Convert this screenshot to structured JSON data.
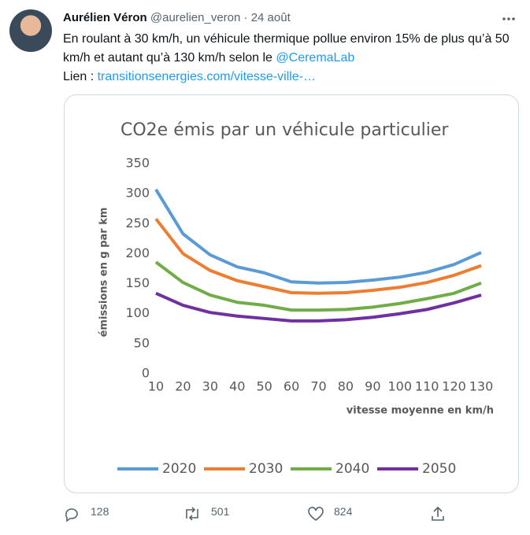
{
  "tweet": {
    "name": "Aurélien Véron",
    "handle": "@aurelien_veron",
    "separator": "·",
    "date": "24 août",
    "text": "En roulant à 30 km/h, un véhicule thermique pollue environ 15% de plus qu’à 50 km/h et autant qu’à 130 km/h selon le ",
    "mention": "@CeremaLab",
    "link_label": "Lien : ",
    "link": "transitionsenergies.com/vitesse-ville-…",
    "replies": "128",
    "retweets": "501",
    "likes": "824"
  },
  "chart_data": {
    "type": "line",
    "title": "CO2e émis par un véhicule particulier",
    "x_label": "vitesse moyenne en km/h",
    "y_label": "émissions en g par km",
    "x": [
      10,
      20,
      30,
      40,
      50,
      60,
      70,
      80,
      90,
      100,
      110,
      120,
      130
    ],
    "xlim": [
      10,
      130
    ],
    "xticks": [
      10,
      20,
      30,
      40,
      50,
      60,
      70,
      80,
      90,
      100,
      110,
      120,
      130
    ],
    "ylim": [
      0,
      350
    ],
    "yticks": [
      0,
      50,
      100,
      150,
      200,
      250,
      300,
      350
    ],
    "grid": false,
    "legend": "bottom",
    "series": [
      {
        "name": "2020",
        "color": "#5b9bd5",
        "values": [
          307,
          233,
          198,
          178,
          168,
          153,
          151,
          152,
          156,
          161,
          169,
          182,
          202
        ]
      },
      {
        "name": "2030",
        "color": "#ed7d31",
        "values": [
          258,
          200,
          172,
          155,
          145,
          135,
          134,
          135,
          139,
          144,
          152,
          164,
          180
        ]
      },
      {
        "name": "2040",
        "color": "#70ad47",
        "values": [
          186,
          152,
          131,
          119,
          114,
          106,
          106,
          107,
          111,
          117,
          125,
          134,
          151
        ]
      },
      {
        "name": "2050",
        "color": "#7030a0",
        "values": [
          134,
          114,
          102,
          96,
          92,
          88,
          88,
          90,
          94,
          100,
          107,
          118,
          131
        ]
      }
    ]
  }
}
